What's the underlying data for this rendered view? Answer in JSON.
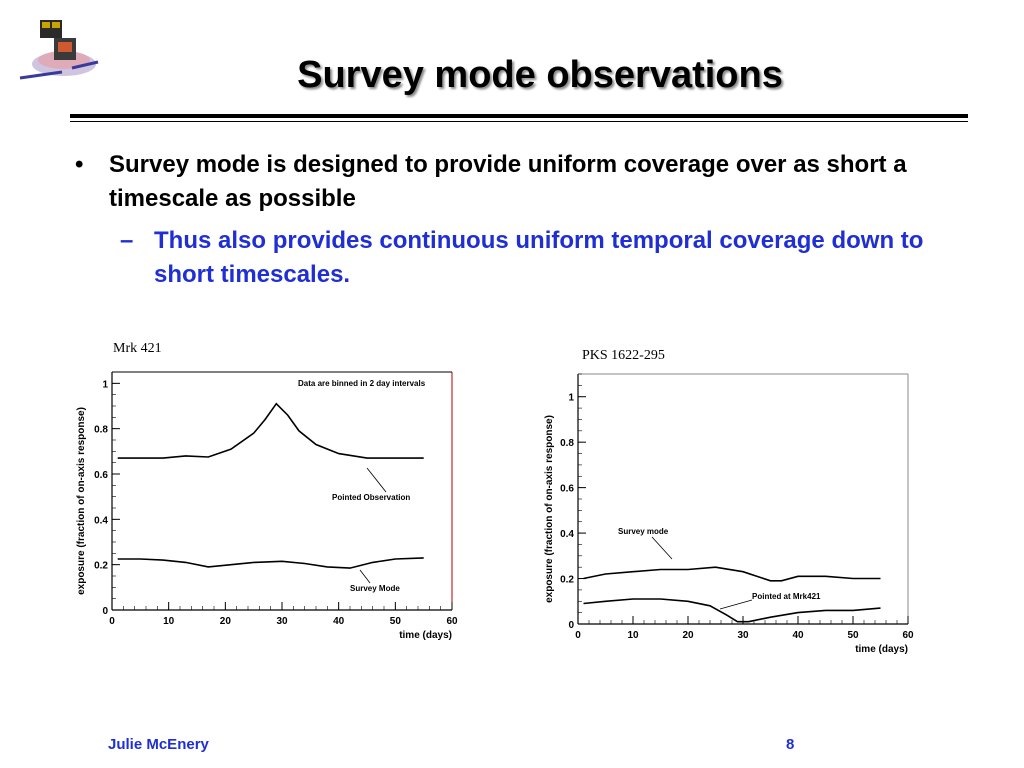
{
  "slide": {
    "title": "Survey mode observations",
    "bullet": "Survey mode is designed to provide uniform coverage over as short a timescale as possible",
    "sub_bullet": "Thus also provides continuous uniform temporal coverage down to short timescales."
  },
  "footer": {
    "author": "Julie McEnery",
    "page": "8"
  },
  "colors": {
    "title": "#000000",
    "accent": "#1f2fd3",
    "curve": "#000000",
    "frame_left": "#000000",
    "frame_right": "#8a8a8a"
  },
  "chart_data": [
    {
      "type": "line",
      "title": "Mrk 421",
      "xlabel": "time (days)",
      "ylabel": "exposure (fraction of on-axis response)",
      "xlim": [
        0,
        60
      ],
      "ylim": [
        0,
        1.05
      ],
      "xticks": [
        0,
        10,
        20,
        30,
        40,
        50,
        60
      ],
      "yticks": [
        0,
        0.2,
        0.4,
        0.6,
        0.8,
        1
      ],
      "annotations": {
        "note": "Data are binned in 2 day intervals",
        "pointed": "Pointed Observation",
        "survey": "Survey Mode"
      },
      "series": [
        {
          "x": [
            1,
            5,
            9,
            13,
            17,
            21,
            25,
            27,
            29,
            31,
            33,
            36,
            40,
            45,
            50,
            55
          ],
          "y": [
            0.67,
            0.67,
            0.67,
            0.68,
            0.675,
            0.71,
            0.78,
            0.84,
            0.91,
            0.86,
            0.79,
            0.73,
            0.69,
            0.67,
            0.67,
            0.67
          ]
        },
        {
          "x": [
            1,
            5,
            9,
            13,
            17,
            21,
            25,
            30,
            34,
            38,
            42,
            46,
            50,
            55
          ],
          "y": [
            0.225,
            0.225,
            0.22,
            0.21,
            0.19,
            0.2,
            0.21,
            0.215,
            0.205,
            0.19,
            0.185,
            0.21,
            0.225,
            0.23
          ]
        }
      ]
    },
    {
      "type": "line",
      "title": "PKS 1622-295",
      "xlabel": "time (days)",
      "ylabel": "exposure (fraction of on-axis response)",
      "xlim": [
        0,
        60
      ],
      "ylim": [
        0,
        1.1
      ],
      "xticks": [
        0,
        10,
        20,
        30,
        40,
        50,
        60
      ],
      "yticks": [
        0,
        0.2,
        0.4,
        0.6,
        0.8,
        1
      ],
      "annotations": {
        "survey": "Survey mode",
        "pointed": "Pointed at Mrk421"
      },
      "series": [
        {
          "x": [
            1,
            5,
            10,
            15,
            20,
            25,
            30,
            35,
            37,
            40,
            45,
            50,
            55
          ],
          "y": [
            0.2,
            0.22,
            0.23,
            0.24,
            0.24,
            0.25,
            0.23,
            0.19,
            0.19,
            0.21,
            0.21,
            0.2,
            0.2
          ]
        },
        {
          "x": [
            1,
            5,
            10,
            15,
            20,
            24,
            27,
            29,
            31,
            35,
            40,
            45,
            50,
            55
          ],
          "y": [
            0.09,
            0.1,
            0.11,
            0.11,
            0.1,
            0.08,
            0.04,
            0.01,
            0.01,
            0.03,
            0.05,
            0.06,
            0.06,
            0.07
          ]
        }
      ]
    }
  ]
}
